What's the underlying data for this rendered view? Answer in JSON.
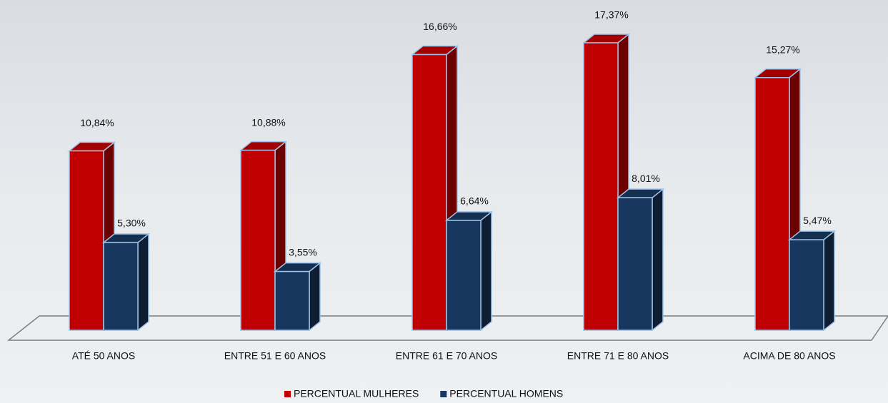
{
  "chart_data": {
    "type": "bar3d",
    "categories": [
      "ATÉ 50 ANOS",
      "ENTRE 51 E 60 ANOS",
      "ENTRE 61 E 70 ANOS",
      "ENTRE 71 E 80 ANOS",
      "ACIMA DE 80 ANOS"
    ],
    "series": [
      {
        "name": "PERCENTUAL MULHERES",
        "color": "#c00000",
        "values": [
          10.84,
          10.88,
          16.66,
          17.37,
          15.27
        ],
        "value_labels": [
          "10,84%",
          "10,88%",
          "16,66%",
          "17,37%",
          "15,27%"
        ]
      },
      {
        "name": "PERCENTUAL HOMENS",
        "color": "#17375e",
        "values": [
          5.3,
          3.55,
          6.64,
          8.01,
          5.47
        ],
        "value_labels": [
          "5,30%",
          "3,55%",
          "6,64%",
          "8,01%",
          "5,47%"
        ]
      }
    ]
  }
}
